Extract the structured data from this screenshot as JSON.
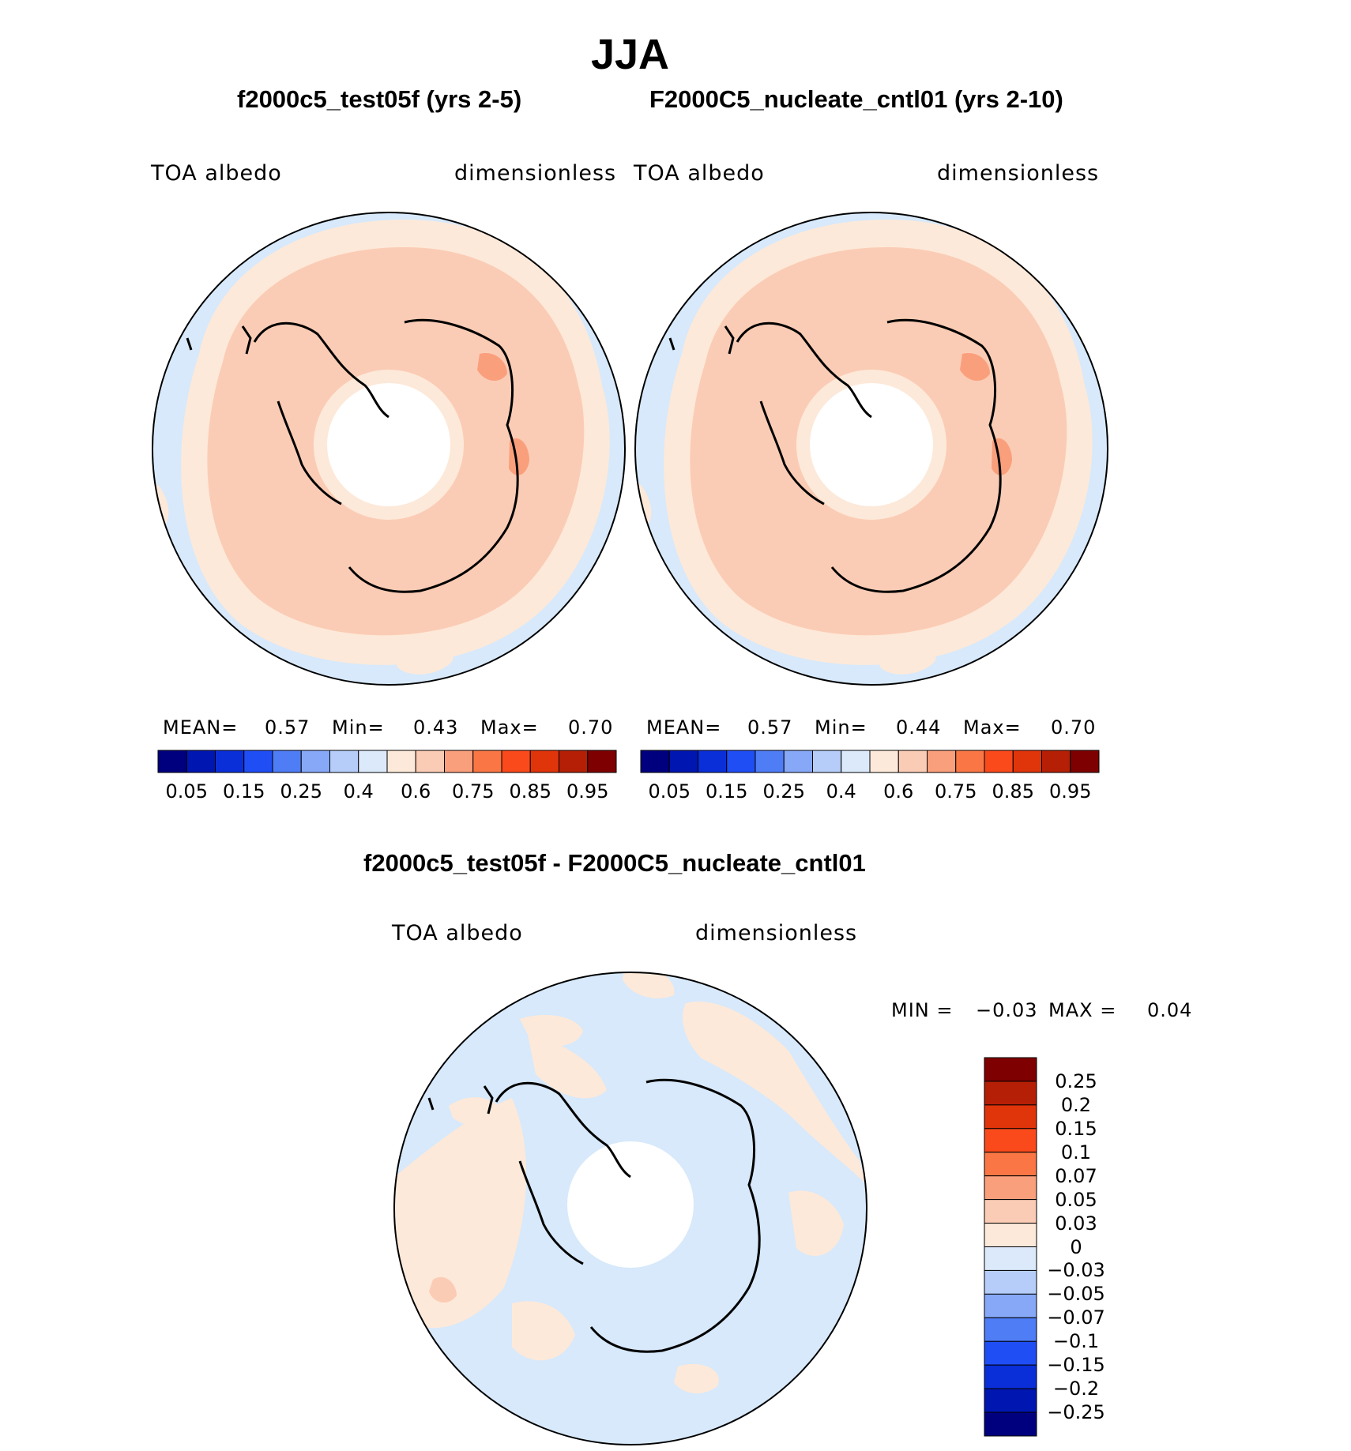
{
  "main_title": "JJA",
  "panel_left": {
    "title": "f2000c5_test05f (yrs 2-5)",
    "variable": "TOA  albedo",
    "units": "dimensionless",
    "mean_label": "MEAN=",
    "mean_value": "0.57",
    "min_label": "Min=",
    "min_value": "0.43",
    "max_label": "Max=",
    "max_value": "0.70"
  },
  "panel_right": {
    "title": "F2000C5_nucleate_cntl01 (yrs 2-10)",
    "variable": "TOA  albedo",
    "units": "dimensionless",
    "mean_label": "MEAN=",
    "mean_value": "0.57",
    "min_label": "Min=",
    "min_value": "0.44",
    "max_label": "Max=",
    "max_value": "0.70"
  },
  "panel_diff": {
    "title": "f2000c5_test05f - F2000C5_nucleate_cntl01",
    "variable": "TOA  albedo",
    "units": "dimensionless",
    "min_label": "MIN =",
    "min_value": "−0.03",
    "max_label": "MAX =",
    "max_value": "0.04"
  },
  "colorbar_abs": {
    "ticks": [
      "0.05",
      "0.15",
      "0.25",
      "0.4",
      "0.6",
      "0.75",
      "0.85",
      "0.95"
    ],
    "colors": [
      "#00007f",
      "#0016b0",
      "#0a2fd8",
      "#1f4ef5",
      "#4f7df5",
      "#86a8f7",
      "#b5cdf8",
      "#dbe9fb",
      "#fde9d9",
      "#fbccb5",
      "#fa9f7c",
      "#fa7745",
      "#fa4a1b",
      "#e0340a",
      "#b51f06",
      "#7f0000"
    ]
  },
  "colorbar_diff": {
    "ticks": [
      "0.25",
      "0.2",
      "0.15",
      "0.1",
      "0.07",
      "0.05",
      "0.03",
      "0",
      "−0.03",
      "−0.05",
      "−0.07",
      "−0.1",
      "−0.15",
      "−0.2",
      "−0.25"
    ],
    "colors": [
      "#7f0000",
      "#b51f06",
      "#e0340a",
      "#fa4a1b",
      "#fa7745",
      "#fa9f7c",
      "#fbccb5",
      "#fde9d9",
      "#dbe9fb",
      "#b5cdf8",
      "#86a8f7",
      "#4f7df5",
      "#1f4ef5",
      "#0a2fd8",
      "#0016b0",
      "#00007f"
    ]
  },
  "map_colors": {
    "ocean_low": "#d7e9fb",
    "band_light": "#fde9d9",
    "band_mid": "#fbccb5",
    "spot_high": "#fa9f7c",
    "diff_pos": "#fde9d9",
    "diff_neg": "#d7e9fb",
    "diff_spot": "#fbccb5"
  }
}
